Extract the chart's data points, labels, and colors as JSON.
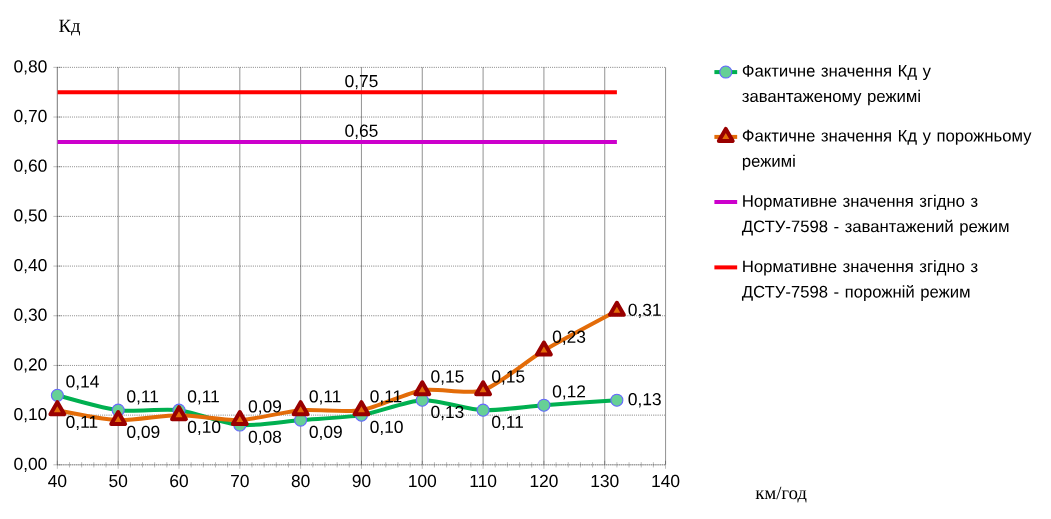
{
  "chart_data": {
    "type": "line",
    "ylabel": "Кд",
    "xlabel": "км/год",
    "x": [
      40,
      50,
      60,
      70,
      80,
      90,
      100,
      110,
      120,
      132
    ],
    "xlim": [
      40,
      140
    ],
    "xticks": [
      40,
      50,
      60,
      70,
      80,
      90,
      100,
      110,
      120,
      130,
      140
    ],
    "ylim": [
      0,
      0.8
    ],
    "yticks": [
      {
        "value": 0,
        "label": "0,00"
      },
      {
        "value": 0.1,
        "label": "0,10"
      },
      {
        "value": 0.2,
        "label": "0,20"
      },
      {
        "value": 0.3,
        "label": "0,30"
      },
      {
        "value": 0.4,
        "label": "0,40"
      },
      {
        "value": 0.5,
        "label": "0,50"
      },
      {
        "value": 0.6,
        "label": "0,60"
      },
      {
        "value": 0.7,
        "label": "0,70"
      },
      {
        "value": 0.8,
        "label": "0,80"
      }
    ],
    "grid": true,
    "legend": "right",
    "series": [
      {
        "name": "Фактичне значення Кд у завантаженому режимі",
        "color": "#00b050",
        "marker": "circle",
        "values": [
          0.14,
          0.11,
          0.11,
          0.08,
          0.09,
          0.1,
          0.13,
          0.11,
          0.12,
          0.13
        ],
        "value_labels": [
          "0,14",
          "0,11",
          "0,11",
          "0,08",
          "0,09",
          "0,10",
          "0,13",
          "0,11",
          "0,12",
          "0,13"
        ]
      },
      {
        "name": "Фактичне значення Кд у порожньому режимі",
        "color": "#e36c09",
        "marker": "triangle",
        "values": [
          0.11,
          0.09,
          0.1,
          0.09,
          0.11,
          0.11,
          0.15,
          0.15,
          0.23,
          0.31
        ],
        "value_labels": [
          "0,11",
          "0,09",
          "0,10",
          "0,09",
          "0,11",
          "0,11",
          "0,15",
          "0,15",
          "0,23",
          "0,31"
        ]
      },
      {
        "name": "Нормативне значення згідно з ДСТУ-7598 - завантажений режим",
        "color": "#cc00cc",
        "marker": "none",
        "values": [
          0.65,
          0.65,
          0.65,
          0.65,
          0.65,
          0.65,
          0.65,
          0.65,
          0.65,
          0.65
        ],
        "value_labels": [
          null,
          null,
          null,
          null,
          null,
          "0,65",
          null,
          null,
          null,
          null
        ]
      },
      {
        "name": "Нормативне значення згідно з ДСТУ-7598 - порожній режим",
        "color": "#ff0000",
        "marker": "none",
        "values": [
          0.75,
          0.75,
          0.75,
          0.75,
          0.75,
          0.75,
          0.75,
          0.75,
          0.75,
          0.75
        ],
        "value_labels": [
          null,
          null,
          null,
          null,
          null,
          "0,75",
          null,
          null,
          null,
          null
        ]
      }
    ]
  }
}
